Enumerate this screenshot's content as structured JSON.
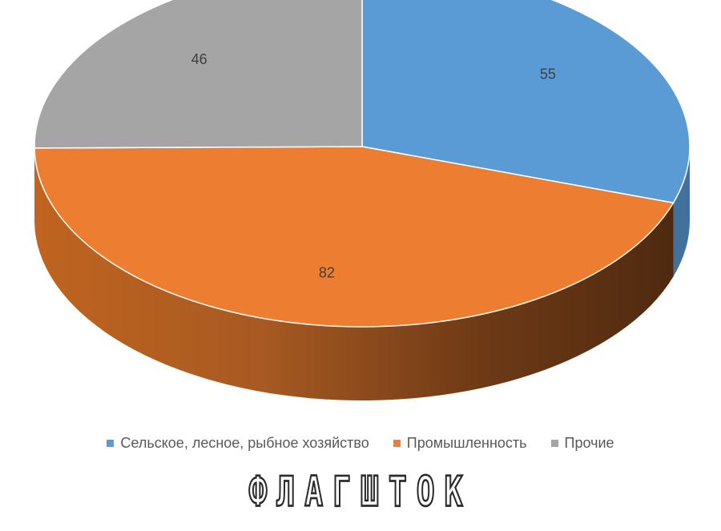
{
  "chart_data": {
    "type": "pie",
    "style": "3d",
    "slices": [
      {
        "label": "Сельское, лесное, рыбное хозяйство",
        "value": 55,
        "color": "#5b9bd5",
        "side": "#41719c"
      },
      {
        "label": "Промышленность",
        "value": 82,
        "color": "#ed7d31",
        "side": "#b55f25"
      },
      {
        "label": "Прочие",
        "value": 46,
        "color": "#a5a5a5",
        "side": "#7b7b7b"
      }
    ],
    "legend_position": "bottom"
  },
  "watermark": "ФЛАГШТОК"
}
